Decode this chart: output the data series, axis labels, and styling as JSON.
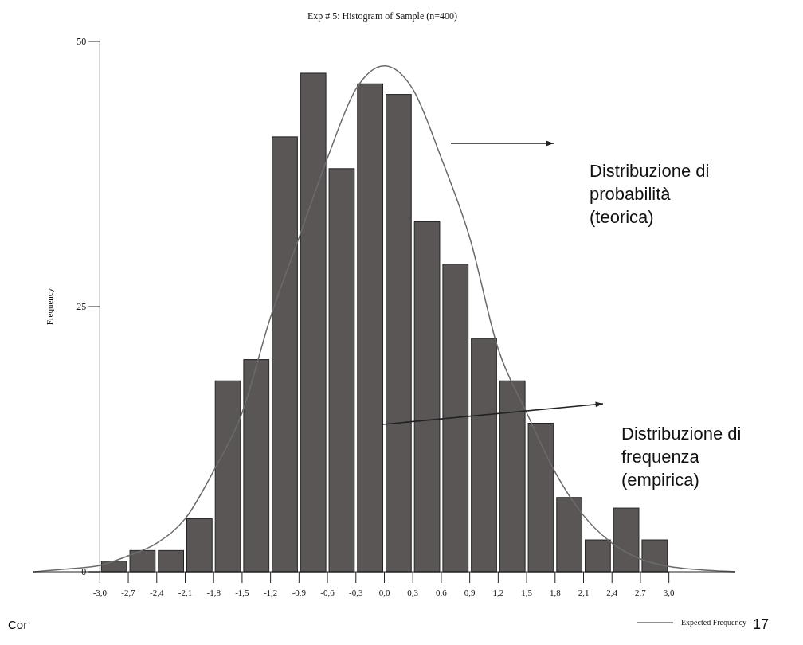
{
  "chart_data": {
    "type": "histogram",
    "title": "Exp # 5: Histogram of Sample (n=400)",
    "ylabel": "Frequency",
    "bins": [
      -3.0,
      -2.7,
      -2.4,
      -2.1,
      -1.8,
      -1.5,
      -1.2,
      -0.9,
      -0.6,
      -0.3,
      0.0,
      0.3,
      0.6,
      0.9,
      1.2,
      1.5,
      1.8,
      2.1,
      2.4,
      2.7,
      3.0
    ],
    "values": [
      1,
      2,
      2,
      5,
      18,
      20,
      41,
      47,
      38,
      46,
      45,
      33,
      29,
      22,
      18,
      14,
      7,
      3,
      6,
      3
    ],
    "color": "#5a5656",
    "series": [
      {
        "type": "line",
        "name": "Expected Frequency",
        "color": "#6b6b6b",
        "x": [
          -3.7,
          -3.3,
          -3.0,
          -2.7,
          -2.4,
          -2.1,
          -1.8,
          -1.5,
          -1.2,
          -0.9,
          -0.6,
          -0.3,
          0.0,
          0.3,
          0.6,
          0.9,
          1.2,
          1.5,
          1.8,
          2.1,
          2.4,
          2.7,
          3.0,
          3.3,
          3.7
        ],
        "values": [
          0,
          0.3,
          0.6,
          1.5,
          2.7,
          5,
          9.5,
          15,
          24,
          31.5,
          39,
          45.5,
          47.7,
          45.5,
          39,
          31.5,
          21,
          15,
          9.4,
          5.3,
          2.7,
          1.2,
          0.5,
          0.2,
          0
        ]
      }
    ],
    "xlim": [
      -3.7,
      3.7
    ],
    "ylim": [
      0,
      50
    ],
    "xticks": [
      {
        "value": -3.0,
        "label": "-3,0"
      },
      {
        "value": -2.7,
        "label": "-2,7"
      },
      {
        "value": -2.4,
        "label": "-2,4"
      },
      {
        "value": -2.1,
        "label": "-2,1"
      },
      {
        "value": -1.8,
        "label": "-1,8"
      },
      {
        "value": -1.5,
        "label": "-1,5"
      },
      {
        "value": -1.2,
        "label": "-1,2"
      },
      {
        "value": -0.9,
        "label": "-0,9"
      },
      {
        "value": -0.6,
        "label": "-0,6"
      },
      {
        "value": -0.3,
        "label": "-0,3"
      },
      {
        "value": 0.0,
        "label": "0,0"
      },
      {
        "value": 0.3,
        "label": "0,3"
      },
      {
        "value": 0.6,
        "label": "0,6"
      },
      {
        "value": 0.9,
        "label": "0,9"
      },
      {
        "value": 1.2,
        "label": "1,2"
      },
      {
        "value": 1.5,
        "label": "1,5"
      },
      {
        "value": 1.8,
        "label": "1,8"
      },
      {
        "value": 2.1,
        "label": "2,1"
      },
      {
        "value": 2.4,
        "label": "2,4"
      },
      {
        "value": 2.7,
        "label": "2,7"
      },
      {
        "value": 3.0,
        "label": "3,0"
      }
    ],
    "yticks": [
      0,
      25,
      50
    ],
    "legend": "bottom right",
    "annotations": [
      "Distribuzione di\nprobabilità\n(teorica)",
      "Distribuzione di\nfrequenza\n(empirica)",
      "Cor",
      "17"
    ]
  }
}
